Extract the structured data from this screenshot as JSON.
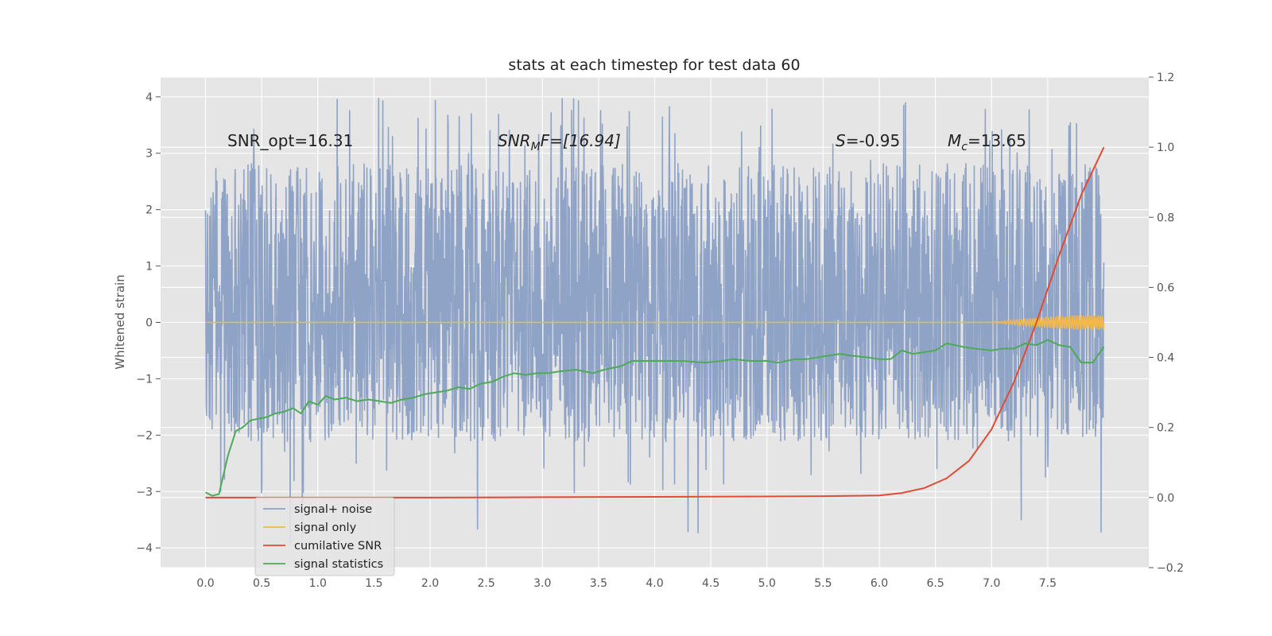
{
  "chart_data": {
    "type": "line",
    "title": "stats at each timestep for test data 60",
    "ylabel": "Whitened strain",
    "xlabel": "",
    "xlim": [
      -0.4,
      8.4
    ],
    "ylim": [
      -4.35,
      4.35
    ],
    "y2lim": [
      -0.2,
      1.2
    ],
    "x_ticks": [
      0.0,
      0.5,
      1.0,
      1.5,
      2.0,
      2.5,
      3.0,
      3.5,
      4.0,
      4.5,
      5.0,
      5.5,
      6.0,
      6.5,
      7.0,
      7.5
    ],
    "x_tick_labels": [
      "0.0",
      "0.5",
      "1.0",
      "1.5",
      "2.0",
      "2.5",
      "3.0",
      "3.5",
      "4.0",
      "4.5",
      "5.0",
      "5.5",
      "6.0",
      "6.5",
      "7.0",
      "7.5"
    ],
    "y_ticks": [
      -4,
      -3,
      -2,
      -1,
      0,
      1,
      2,
      3,
      4
    ],
    "y_tick_labels": [
      "−4",
      "−3",
      "−2",
      "−1",
      "0",
      "1",
      "2",
      "3",
      "4"
    ],
    "y2_ticks": [
      -0.2,
      0.0,
      0.2,
      0.4,
      0.6,
      0.8,
      1.0,
      1.2
    ],
    "y2_tick_labels": [
      "−0.2",
      "0.0",
      "0.2",
      "0.4",
      "0.6",
      "0.8",
      "1.0",
      "1.2"
    ],
    "grid": true,
    "legend_position": "lower-left",
    "colors": {
      "background": "#e5e5e5",
      "grid": "#ffffff",
      "noise": "#8fa3c7",
      "signal": "#f2b84b",
      "cumulative_snr": "#e24a33",
      "statistics": "#4daa57"
    },
    "annotations": {
      "snr_opt": "SNR_opt=16.31",
      "snr_mf_main": "SNR",
      "snr_mf_sub": "M",
      "snr_mf_rest": "F=[16.94]",
      "s_italic": "S",
      "s_rest": "=-0.95",
      "mc_main": "M",
      "mc_sub": "c",
      "mc_rest": "=13.65"
    },
    "legend": [
      {
        "label": "signal+ noise",
        "color": "#8fa3c7"
      },
      {
        "label": "signal only",
        "color": "#f2b84b"
      },
      {
        "label": "cumilative SNR",
        "color": "#e24a33"
      },
      {
        "label": "signal statistics",
        "color": "#4daa57"
      }
    ],
    "noise_envelope": {
      "x_range": [
        0.0,
        8.0
      ],
      "typical_range": [
        -2.0,
        2.7
      ],
      "observed_extremes": [
        -3.97,
        3.97
      ]
    },
    "series": [
      {
        "name": "signal only",
        "axis": "left",
        "x": [
          0.0,
          7.0,
          7.1,
          7.2,
          7.3,
          7.4,
          7.5,
          7.6,
          7.7,
          7.8,
          7.9,
          8.0
        ],
        "amplitude": [
          0.0,
          0.0,
          0.02,
          0.04,
          0.06,
          0.08,
          0.1,
          0.12,
          0.12,
          0.13,
          0.13,
          0.13
        ]
      },
      {
        "name": "cumilative SNR",
        "axis": "right",
        "x": [
          0.0,
          1.0,
          2.0,
          3.0,
          4.0,
          5.0,
          5.5,
          6.0,
          6.2,
          6.4,
          6.6,
          6.8,
          7.0,
          7.2,
          7.4,
          7.6,
          7.8,
          8.0
        ],
        "y": [
          0.0,
          0.0,
          0.0,
          0.001,
          0.002,
          0.003,
          0.004,
          0.006,
          0.013,
          0.027,
          0.055,
          0.105,
          0.195,
          0.33,
          0.5,
          0.69,
          0.865,
          1.0
        ]
      },
      {
        "name": "signal statistics",
        "axis": "right",
        "x": [
          0.0,
          0.06,
          0.12,
          0.2,
          0.27,
          0.33,
          0.4,
          0.47,
          0.55,
          0.62,
          0.7,
          0.78,
          0.85,
          0.92,
          1.0,
          1.07,
          1.15,
          1.25,
          1.35,
          1.45,
          1.55,
          1.65,
          1.75,
          1.85,
          1.95,
          2.05,
          2.15,
          2.25,
          2.35,
          2.45,
          2.55,
          2.65,
          2.75,
          2.85,
          2.95,
          3.05,
          3.15,
          3.3,
          3.45,
          3.55,
          3.7,
          3.8,
          3.95,
          4.1,
          4.25,
          4.45,
          4.6,
          4.7,
          4.85,
          5.0,
          5.1,
          5.25,
          5.35,
          5.45,
          5.55,
          5.65,
          5.75,
          5.9,
          6.0,
          6.1,
          6.2,
          6.3,
          6.4,
          6.5,
          6.6,
          6.75,
          6.85,
          7.0,
          7.1,
          7.2,
          7.3,
          7.4,
          7.5,
          7.6,
          7.7,
          7.8,
          7.9,
          8.0
        ],
        "y": [
          0.015,
          0.005,
          0.01,
          0.12,
          0.19,
          0.2,
          0.22,
          0.225,
          0.23,
          0.24,
          0.245,
          0.255,
          0.24,
          0.275,
          0.265,
          0.29,
          0.28,
          0.285,
          0.275,
          0.28,
          0.275,
          0.27,
          0.28,
          0.285,
          0.295,
          0.3,
          0.305,
          0.315,
          0.31,
          0.325,
          0.33,
          0.345,
          0.355,
          0.35,
          0.355,
          0.355,
          0.36,
          0.365,
          0.355,
          0.365,
          0.375,
          0.39,
          0.39,
          0.39,
          0.39,
          0.385,
          0.39,
          0.395,
          0.39,
          0.39,
          0.385,
          0.395,
          0.395,
          0.4,
          0.405,
          0.41,
          0.405,
          0.4,
          0.395,
          0.395,
          0.42,
          0.41,
          0.415,
          0.42,
          0.44,
          0.43,
          0.425,
          0.42,
          0.425,
          0.425,
          0.44,
          0.435,
          0.45,
          0.435,
          0.43,
          0.385,
          0.385,
          0.43
        ]
      }
    ]
  }
}
